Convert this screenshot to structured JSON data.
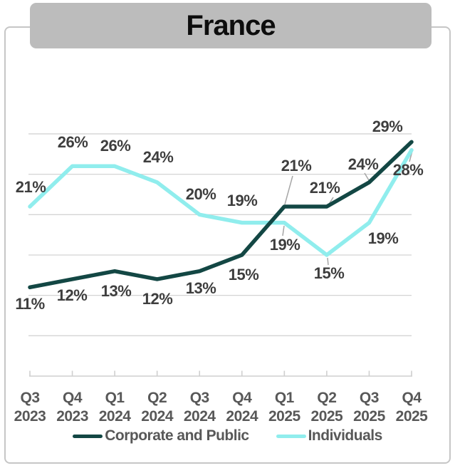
{
  "title": "France",
  "legend": [
    {
      "label": "Corporate and Public",
      "color": "#134744"
    },
    {
      "label": "Individuals",
      "color": "#90eded"
    }
  ],
  "chart_data": {
    "type": "line",
    "title": "France",
    "unit": "%",
    "categories": [
      {
        "quarter": "Q3",
        "year": "2023"
      },
      {
        "quarter": "Q4",
        "year": "2023"
      },
      {
        "quarter": "Q1",
        "year": "2024"
      },
      {
        "quarter": "Q2",
        "year": "2024"
      },
      {
        "quarter": "Q3",
        "year": "2024"
      },
      {
        "quarter": "Q4",
        "year": "2024"
      },
      {
        "quarter": "Q1",
        "year": "2025"
      },
      {
        "quarter": "Q2",
        "year": "2025"
      },
      {
        "quarter": "Q3",
        "year": "2025"
      },
      {
        "quarter": "Q4",
        "year": "2025"
      }
    ],
    "series": [
      {
        "name": "Corporate and Public",
        "color": "#134744",
        "values": [
          11,
          12,
          13,
          12,
          13,
          15,
          21,
          21,
          24,
          29
        ]
      },
      {
        "name": "Individuals",
        "color": "#90eded",
        "values": [
          21,
          26,
          26,
          24,
          20,
          19,
          19,
          15,
          19,
          28
        ]
      }
    ],
    "ylim": [
      0,
      30
    ],
    "gridline_values": [
      5,
      10,
      15,
      20,
      25,
      30
    ],
    "grid": "on",
    "legend_position": "bottom",
    "data_labels": "all points, value + %"
  },
  "colors": {
    "gridline": "#d4d4d4",
    "axis_line": "#cfcfcf",
    "leader_line": "#a6a6a6",
    "data_label": "#3e3e3e",
    "axis_label": "#585858",
    "title_background": "#bcbcbc",
    "card_border": "#c6c6c6"
  }
}
